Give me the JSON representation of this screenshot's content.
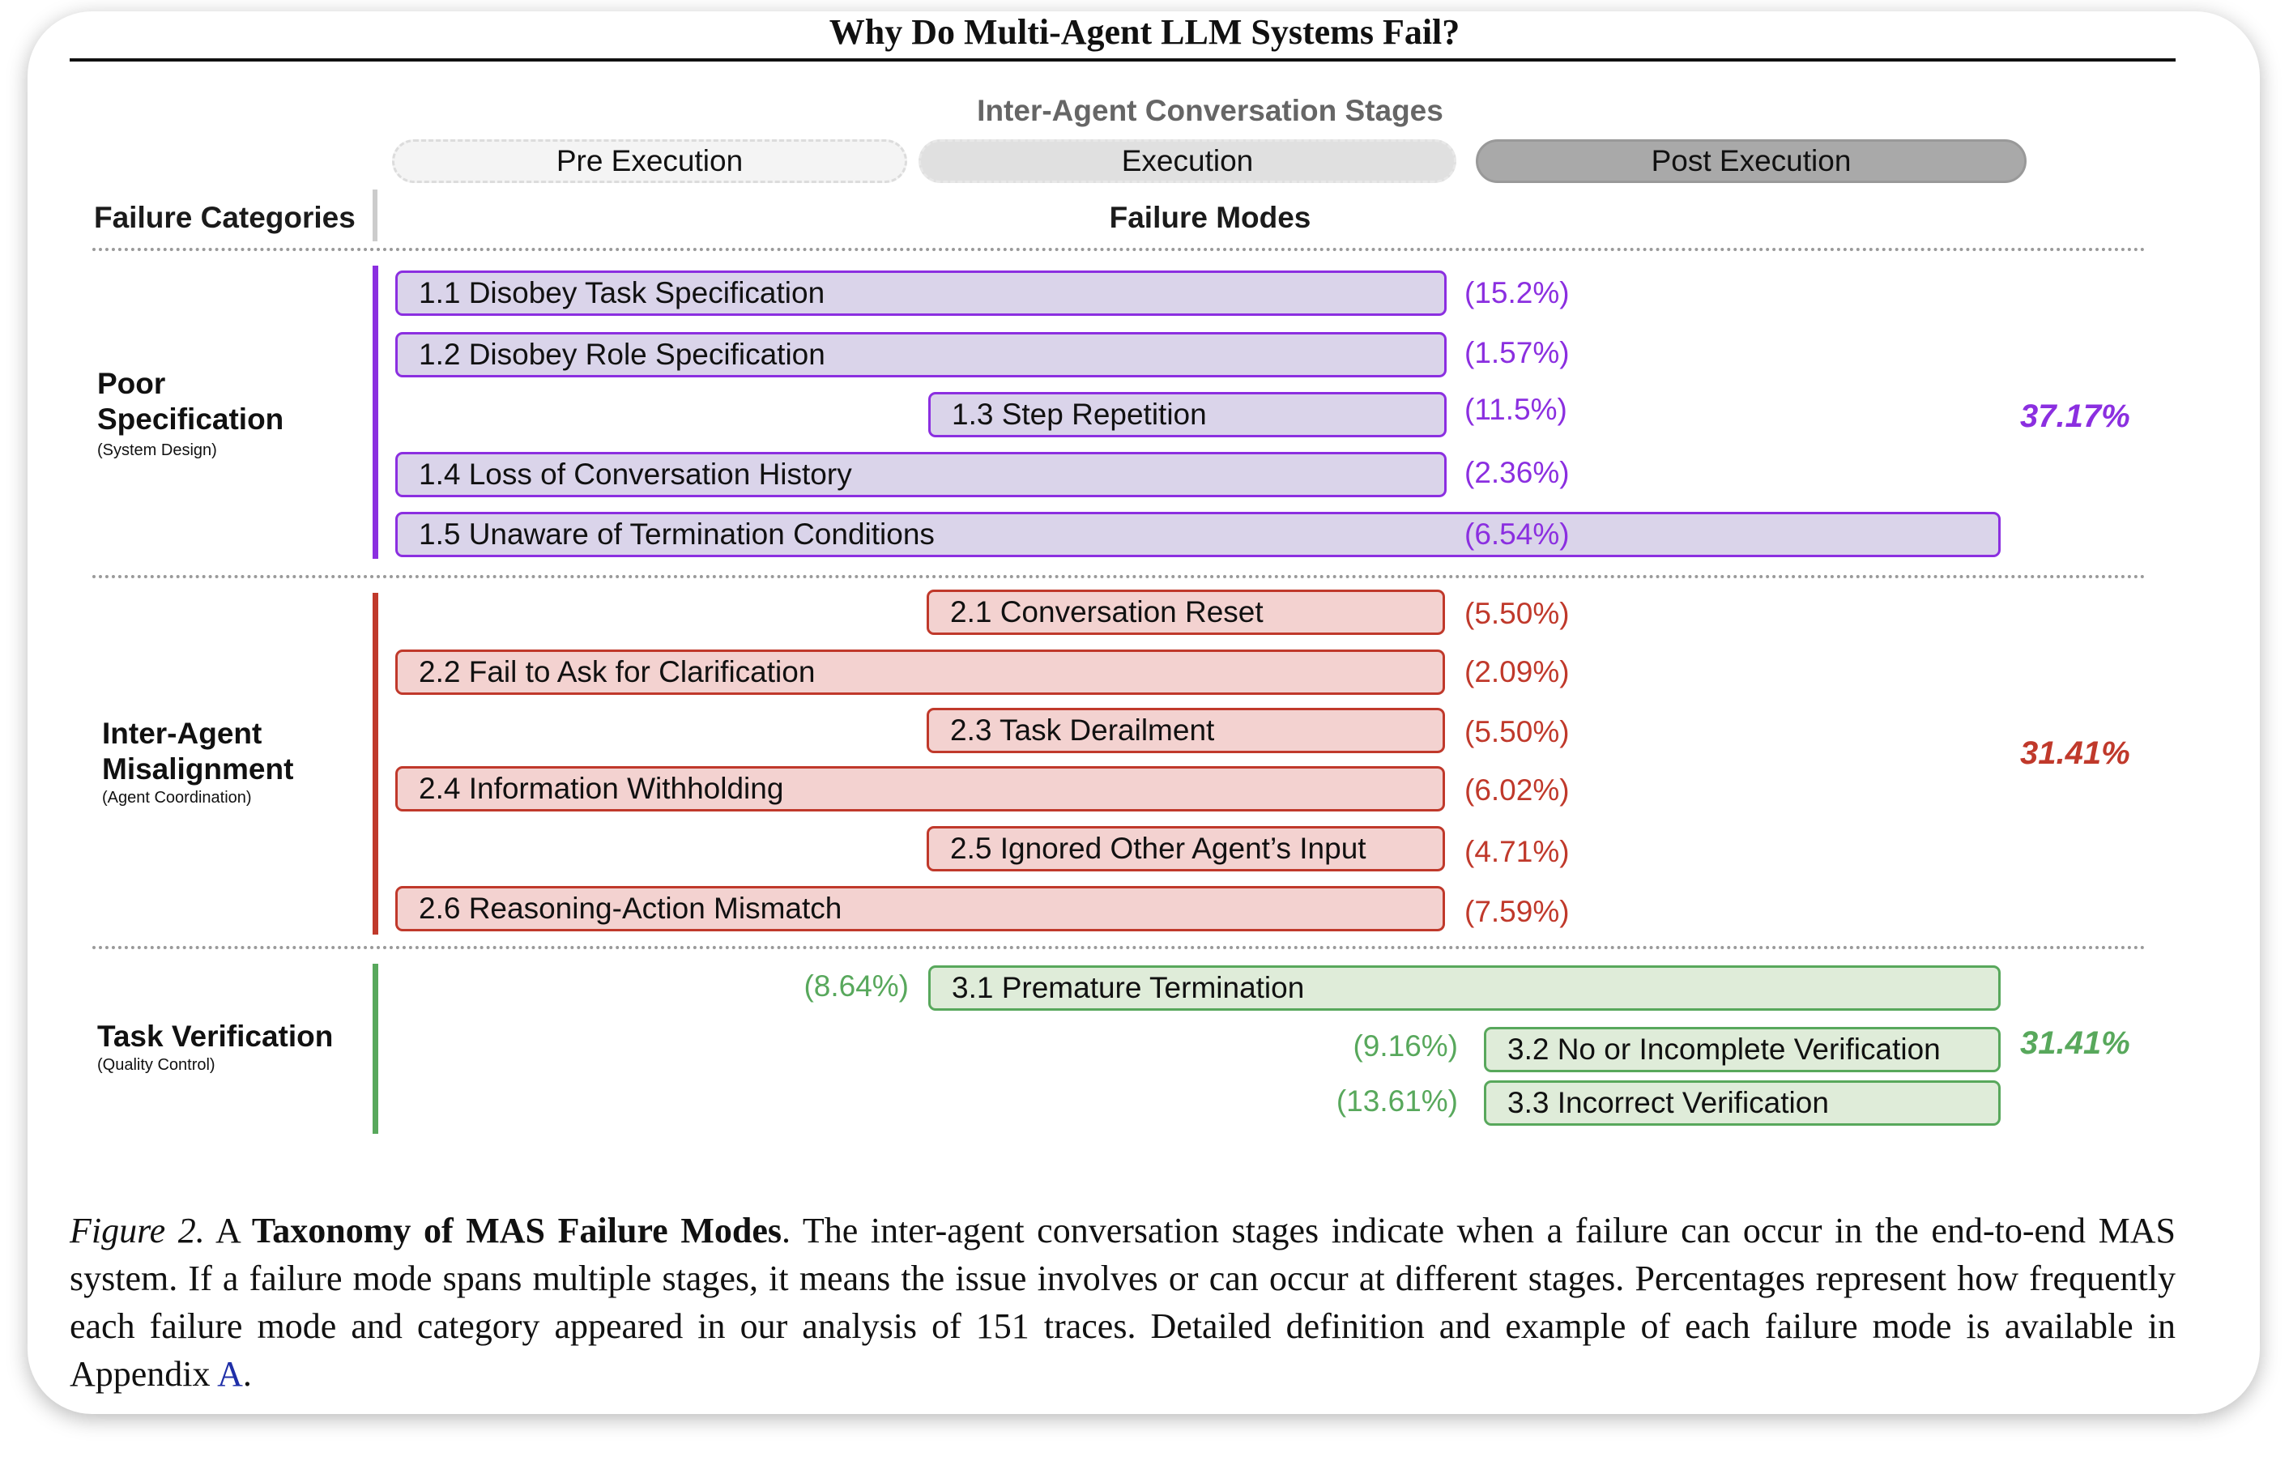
{
  "title": "Why Do Multi-Agent LLM Systems Fail?",
  "stages_title": "Inter-Agent Conversation Stages",
  "stages": [
    "Pre Execution",
    "Execution",
    "Post Execution"
  ],
  "header": {
    "categories": "Failure Categories",
    "modes": "Failure Modes"
  },
  "colors": {
    "spec": "#8b2fe0",
    "spec_fill": "#dad4ea",
    "inter": "#c0392b",
    "inter_fill": "#f3d2d0",
    "verif": "#58a85c",
    "verif_fill": "#dfecd9"
  },
  "categories": [
    {
      "name_line1": "Poor",
      "name_line2": "Specification",
      "sub": "(System Design)",
      "total": "37.17%",
      "modes": [
        {
          "label": "1.1 Disobey Task Specification",
          "pct": "(15.2%)"
        },
        {
          "label": "1.2 Disobey Role Specification",
          "pct": "(1.57%)"
        },
        {
          "label": "1.3 Step Repetition",
          "pct": "(11.5%)"
        },
        {
          "label": "1.4 Loss of Conversation History",
          "pct": "(2.36%)"
        },
        {
          "label": "1.5 Unaware of Termination Conditions",
          "pct": "(6.54%)"
        }
      ]
    },
    {
      "name_line1": "Inter-Agent",
      "name_line2": "Misalignment",
      "sub": "(Agent Coordination)",
      "total": "31.41%",
      "modes": [
        {
          "label": "2.1 Conversation Reset",
          "pct": "(5.50%)"
        },
        {
          "label": "2.2 Fail to Ask for Clarification",
          "pct": "(2.09%)"
        },
        {
          "label": "2.3 Task Derailment",
          "pct": "(5.50%)"
        },
        {
          "label": "2.4 Information Withholding",
          "pct": "(6.02%)"
        },
        {
          "label": "2.5 Ignored Other Agent’s Input",
          "pct": "(4.71%)"
        },
        {
          "label": "2.6 Reasoning-Action Mismatch",
          "pct": "(7.59%)"
        }
      ]
    },
    {
      "name_line1": "Task Verification",
      "sub": "(Quality Control)",
      "total": "31.41%",
      "modes": [
        {
          "label": "3.1  Premature Termination",
          "pct": "(8.64%)"
        },
        {
          "label": "3.2 No or Incomplete Verification",
          "pct": "(9.16%)"
        },
        {
          "label": "3.3 Incorrect Verification",
          "pct": "(13.61%)"
        }
      ]
    }
  ],
  "caption": {
    "figure": "Figure 2.",
    "lead": " A ",
    "bold": "Taxonomy of MAS Failure Modes",
    "body": ". The inter-agent conversation stages indicate when a failure can occur in the end-to-end MAS system. If a failure mode spans multiple stages, it means the issue involves or can occur at different stages. Percentages represent how frequently each failure mode and category appeared in our analysis of 151 traces. Detailed definition and example of each failure mode is available in Appendix ",
    "link": "A",
    "end": "."
  }
}
